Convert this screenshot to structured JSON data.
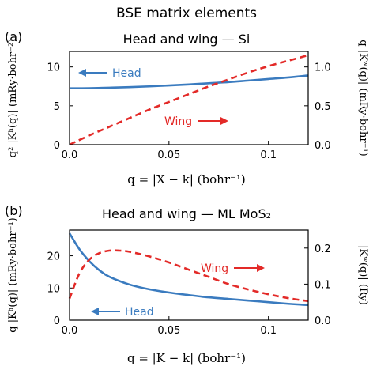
{
  "figure_title": "BSE matrix elements",
  "chart_data": [
    {
      "panel_label": "(a)",
      "type": "line",
      "title": "Head and wing — Si",
      "xlabel": "q = |X − k| (bohr⁻¹)",
      "ylabel_left": "q² |Kʰ(q)| (mRy·bohr⁻²)",
      "ylabel_right": "q |Kʷ(q)| (mRy·bohr⁻¹)",
      "xlim": [
        0,
        0.12
      ],
      "ylim_left": [
        0,
        12
      ],
      "ylim_right": [
        0,
        1.2
      ],
      "xticks": [
        "0.0",
        "0.05",
        "0.1"
      ],
      "yticks_left": [
        "0",
        "5",
        "10"
      ],
      "yticks_right": [
        "0.0",
        "0.5",
        "1.0"
      ],
      "series": [
        {
          "name": "Head",
          "axis": "left",
          "color": "#3a7bbf",
          "style": "solid",
          "x": [
            0,
            0.01,
            0.02,
            0.03,
            0.04,
            0.05,
            0.06,
            0.07,
            0.08,
            0.09,
            0.1,
            0.11,
            0.12
          ],
          "y": [
            7.25,
            7.27,
            7.33,
            7.4,
            7.5,
            7.62,
            7.75,
            7.9,
            8.05,
            8.25,
            8.45,
            8.65,
            8.9
          ]
        },
        {
          "name": "Wing",
          "axis": "right",
          "color": "#e32a28",
          "style": "dashed",
          "x": [
            0,
            0.01,
            0.02,
            0.03,
            0.04,
            0.05,
            0.06,
            0.07,
            0.08,
            0.09,
            0.1,
            0.11,
            0.12
          ],
          "y": [
            0.0,
            0.12,
            0.23,
            0.34,
            0.45,
            0.55,
            0.65,
            0.75,
            0.84,
            0.93,
            1.01,
            1.08,
            1.15
          ]
        }
      ],
      "annotations": [
        "Head",
        "Wing"
      ]
    },
    {
      "panel_label": "(b)",
      "type": "line",
      "title": "Head and wing — ML MoS₂",
      "xlabel": "q = |K − k| (bohr⁻¹)",
      "ylabel_left": "q |Kʰ(q)| (mRy·bohr⁻¹)",
      "ylabel_right": "|Kʷ(q)| (Ry)",
      "xlim": [
        0,
        0.12
      ],
      "ylim_left": [
        0,
        28
      ],
      "ylim_right": [
        0,
        0.25
      ],
      "xticks": [
        "0.0",
        "0.05",
        "0.1"
      ],
      "yticks_left": [
        "0",
        "10",
        "20"
      ],
      "yticks_right": [
        "0.0",
        "0.1",
        "0.2"
      ],
      "series": [
        {
          "name": "Head",
          "axis": "left",
          "color": "#3a7bbf",
          "style": "solid",
          "x": [
            0,
            0.005,
            0.01,
            0.015,
            0.02,
            0.03,
            0.04,
            0.05,
            0.06,
            0.07,
            0.08,
            0.09,
            0.1,
            0.11,
            0.12
          ],
          "y": [
            27,
            22,
            18.3,
            15.5,
            13.5,
            11.1,
            9.6,
            8.6,
            7.8,
            7.1,
            6.6,
            6.1,
            5.6,
            5.1,
            4.7
          ]
        },
        {
          "name": "Wing",
          "axis": "right",
          "color": "#e32a28",
          "style": "dashed",
          "x": [
            0,
            0.005,
            0.01,
            0.015,
            0.02,
            0.025,
            0.03,
            0.04,
            0.05,
            0.06,
            0.07,
            0.08,
            0.09,
            0.1,
            0.11,
            0.12
          ],
          "y": [
            0.06,
            0.13,
            0.168,
            0.186,
            0.193,
            0.193,
            0.19,
            0.177,
            0.16,
            0.14,
            0.12,
            0.1,
            0.085,
            0.072,
            0.061,
            0.053
          ]
        }
      ],
      "annotations": [
        "Wing",
        "Head"
      ]
    }
  ]
}
